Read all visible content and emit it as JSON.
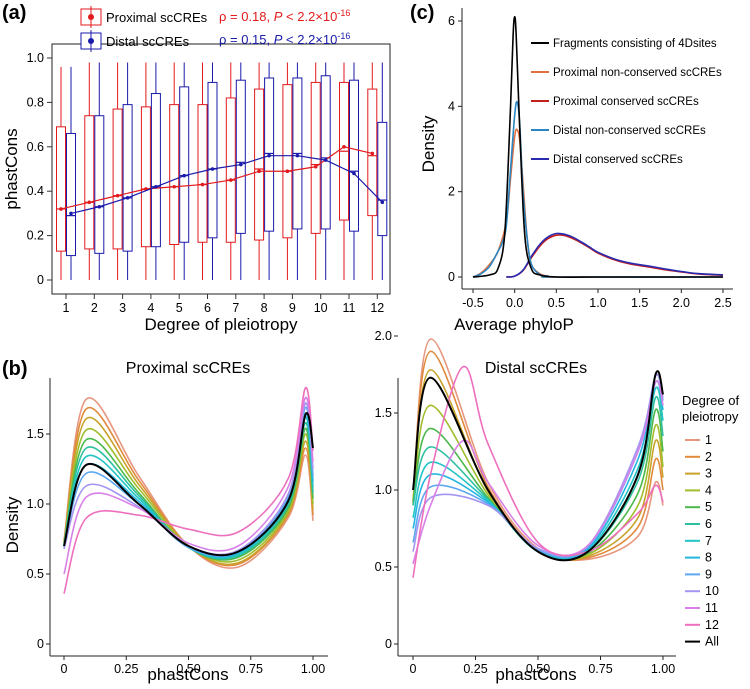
{
  "panel_labels": {
    "a": "(a)",
    "b": "(b)",
    "c": "(c)"
  },
  "panel_a": {
    "legend_proximal": "Proximal scCREs",
    "legend_distal": "Distal scCREs",
    "rho_proximal": "ρ = 0.18, ",
    "rho_distal": "ρ = 0.15, ",
    "p_symbol": "P",
    "p_prefix": " < 2.2×10",
    "p_exp": "-16"
  },
  "panel_b": {
    "title_left": "Proximal scCREs",
    "title_right": "Distal scCREs",
    "legend_title_1": "Degree of",
    "legend_title_2": "pleiotropy"
  },
  "chart_data": [
    {
      "id": "a",
      "type": "box",
      "title": "",
      "xlabel": "Degree of pleiotropy",
      "ylabel": "phastCons",
      "ylim": [
        0,
        1.0
      ],
      "yticks": [
        "0",
        "0.2",
        "0.4",
        "0.6",
        "0.8",
        "1.0"
      ],
      "categories": [
        "1",
        "2",
        "3",
        "4",
        "5",
        "6",
        "7",
        "8",
        "9",
        "10",
        "11",
        "12"
      ],
      "series": [
        {
          "name": "Proximal scCREs",
          "color": "#e31a1c",
          "mean": [
            0.32,
            0.35,
            0.38,
            0.41,
            0.42,
            0.43,
            0.45,
            0.49,
            0.49,
            0.51,
            0.6,
            0.57
          ],
          "q1": [
            0.13,
            0.14,
            0.14,
            0.15,
            0.16,
            0.17,
            0.17,
            0.18,
            0.19,
            0.21,
            0.27,
            0.29
          ],
          "median": [
            0.32,
            0.35,
            0.38,
            0.41,
            0.42,
            0.43,
            0.45,
            0.5,
            0.49,
            0.52,
            0.58,
            0.56
          ],
          "q3": [
            0.69,
            0.74,
            0.77,
            0.78,
            0.79,
            0.79,
            0.82,
            0.86,
            0.88,
            0.89,
            0.89,
            0.86
          ],
          "whisker_low": [
            0,
            0,
            0,
            0,
            0,
            0,
            0,
            0,
            0,
            0,
            0,
            0
          ],
          "whisker_high": [
            0.96,
            0.98,
            0.98,
            0.98,
            0.98,
            0.98,
            0.98,
            0.98,
            0.98,
            0.98,
            0.98,
            0.98
          ]
        },
        {
          "name": "Distal scCREs",
          "color": "#1a1aab",
          "mean": [
            0.3,
            0.33,
            0.37,
            0.42,
            0.47,
            0.5,
            0.52,
            0.56,
            0.56,
            0.54,
            0.48,
            0.35
          ],
          "q1": [
            0.11,
            0.12,
            0.13,
            0.15,
            0.17,
            0.19,
            0.21,
            0.22,
            0.23,
            0.23,
            0.22,
            0.2
          ],
          "median": [
            0.29,
            0.33,
            0.37,
            0.42,
            0.47,
            0.5,
            0.53,
            0.57,
            0.57,
            0.55,
            0.49,
            0.36
          ],
          "q3": [
            0.66,
            0.74,
            0.79,
            0.84,
            0.87,
            0.89,
            0.9,
            0.91,
            0.91,
            0.92,
            0.9,
            0.71
          ],
          "whisker_low": [
            0,
            0,
            0,
            0,
            0,
            0,
            0,
            0,
            0,
            0,
            0,
            0
          ],
          "whisker_high": [
            0.96,
            0.98,
            0.98,
            0.98,
            0.98,
            0.98,
            0.98,
            0.98,
            0.98,
            0.98,
            0.98,
            0.98
          ]
        }
      ]
    },
    {
      "id": "c",
      "type": "line",
      "xlabel": "Average phyloP",
      "ylabel": "Density",
      "xlim": [
        -0.5,
        2.5
      ],
      "ylim": [
        0,
        6.2
      ],
      "xticks": [
        "-0.5",
        "0.0",
        "0.5",
        "1.0",
        "1.5",
        "2.0",
        "2.5"
      ],
      "yticks": [
        "0",
        "2",
        "4",
        "6"
      ],
      "series": [
        {
          "name": "Fragments consisting of 4Dsites",
          "color": "#000000",
          "x": [
            -0.5,
            -0.3,
            -0.2,
            -0.12,
            -0.06,
            -0.02,
            0.0,
            0.02,
            0.06,
            0.12,
            0.2,
            0.3,
            0.5,
            1.0,
            1.5,
            2.0,
            2.5
          ],
          "y": [
            0,
            0.05,
            0.2,
            1.0,
            3.5,
            5.6,
            6.1,
            5.6,
            3.5,
            1.0,
            0.2,
            0.05,
            0,
            0,
            0,
            0,
            0
          ]
        },
        {
          "name": "Proximal non-conserved scCREs",
          "color": "#e07040",
          "x": [
            -0.5,
            -0.4,
            -0.3,
            -0.2,
            -0.1,
            -0.05,
            0.0,
            0.03,
            0.06,
            0.1,
            0.15,
            0.2,
            0.3,
            0.4,
            0.5,
            2.5
          ],
          "y": [
            0,
            0.1,
            0.3,
            0.6,
            1.3,
            2.3,
            3.3,
            3.45,
            3.2,
            2.2,
            0.9,
            0.3,
            0.08,
            0.02,
            0,
            0
          ]
        },
        {
          "name": "Proximal conserved scCREs",
          "color": "#c2201c",
          "x": [
            -0.1,
            0.0,
            0.1,
            0.2,
            0.3,
            0.4,
            0.5,
            0.6,
            0.7,
            0.8,
            0.9,
            1.0,
            1.2,
            1.4,
            1.6,
            1.8,
            2.0,
            2.2,
            2.5
          ],
          "y": [
            0,
            0.02,
            0.15,
            0.45,
            0.72,
            0.9,
            0.98,
            0.97,
            0.9,
            0.8,
            0.68,
            0.56,
            0.4,
            0.3,
            0.24,
            0.17,
            0.12,
            0.07,
            0.04
          ]
        },
        {
          "name": "Distal non-conserved scCREs",
          "color": "#2a86c2",
          "x": [
            -0.5,
            -0.4,
            -0.3,
            -0.2,
            -0.15,
            -0.1,
            -0.05,
            0.0,
            0.03,
            0.06,
            0.1,
            0.15,
            0.2,
            0.3,
            0.4,
            0.5,
            2.5
          ],
          "y": [
            0,
            0.08,
            0.25,
            0.6,
            0.8,
            1.2,
            2.5,
            3.8,
            4.1,
            3.6,
            2.0,
            0.9,
            0.3,
            0.06,
            0.02,
            0,
            0
          ]
        },
        {
          "name": "Distal conserved scCREs",
          "color": "#2a2ab0",
          "x": [
            -0.1,
            0.0,
            0.1,
            0.2,
            0.3,
            0.4,
            0.5,
            0.6,
            0.7,
            0.8,
            0.9,
            1.0,
            1.2,
            1.4,
            1.6,
            1.8,
            2.0,
            2.2,
            2.5
          ],
          "y": [
            0,
            0.02,
            0.16,
            0.48,
            0.76,
            0.94,
            1.02,
            1.0,
            0.93,
            0.82,
            0.7,
            0.58,
            0.42,
            0.32,
            0.26,
            0.19,
            0.13,
            0.08,
            0.05
          ]
        }
      ]
    },
    {
      "id": "b-left",
      "type": "line",
      "title": "Proximal scCREs",
      "xlabel": "phastCons",
      "ylabel": "Density",
      "xlim": [
        0,
        1.0
      ],
      "ylim": [
        0,
        1.9
      ],
      "xticks": [
        "0",
        "0.25",
        "0.50",
        "0.75",
        "1.00"
      ],
      "yticks": [
        "0",
        "0.5",
        "1.0",
        "1.5"
      ],
      "series": [
        {
          "name": "1",
          "color": "#e8967e",
          "x": [
            0,
            0.09,
            0.3,
            0.5,
            0.7,
            0.9,
            0.97,
            1.0
          ],
          "y": [
            0.74,
            1.75,
            1.2,
            0.7,
            0.55,
            0.9,
            1.35,
            0.88
          ]
        },
        {
          "name": "2",
          "color": "#e08a3c",
          "x": [
            0,
            0.09,
            0.3,
            0.5,
            0.7,
            0.9,
            0.97,
            1.0
          ],
          "y": [
            0.73,
            1.68,
            1.17,
            0.7,
            0.57,
            0.92,
            1.4,
            0.92
          ]
        },
        {
          "name": "3",
          "color": "#c9a22a",
          "x": [
            0,
            0.09,
            0.3,
            0.5,
            0.7,
            0.9,
            0.97,
            1.0
          ],
          "y": [
            0.72,
            1.61,
            1.14,
            0.7,
            0.58,
            0.93,
            1.45,
            0.96
          ]
        },
        {
          "name": "4",
          "color": "#9fbd2c",
          "x": [
            0,
            0.09,
            0.3,
            0.5,
            0.7,
            0.9,
            0.97,
            1.0
          ],
          "y": [
            0.72,
            1.53,
            1.11,
            0.7,
            0.6,
            0.95,
            1.5,
            1.0
          ]
        },
        {
          "name": "5",
          "color": "#4cb84a",
          "x": [
            0,
            0.09,
            0.3,
            0.5,
            0.7,
            0.9,
            0.97,
            1.0
          ],
          "y": [
            0.71,
            1.46,
            1.08,
            0.69,
            0.62,
            0.97,
            1.54,
            1.04
          ]
        },
        {
          "name": "6",
          "color": "#2cc0a0",
          "x": [
            0,
            0.09,
            0.3,
            0.5,
            0.7,
            0.9,
            0.97,
            1.0
          ],
          "y": [
            0.71,
            1.4,
            1.06,
            0.69,
            0.63,
            0.99,
            1.58,
            1.08
          ]
        },
        {
          "name": "7",
          "color": "#22c4c4",
          "x": [
            0,
            0.09,
            0.3,
            0.5,
            0.7,
            0.9,
            0.97,
            1.0
          ],
          "y": [
            0.7,
            1.34,
            1.04,
            0.69,
            0.64,
            1.01,
            1.62,
            1.12
          ]
        },
        {
          "name": "8",
          "color": "#24b6e0",
          "x": [
            0,
            0.09,
            0.3,
            0.5,
            0.7,
            0.9,
            0.97,
            1.0
          ],
          "y": [
            0.7,
            1.28,
            1.02,
            0.69,
            0.65,
            1.03,
            1.65,
            1.16
          ]
        },
        {
          "name": "9",
          "color": "#5ca8f0",
          "x": [
            0,
            0.09,
            0.3,
            0.5,
            0.7,
            0.9,
            0.97,
            1.0
          ],
          "y": [
            0.69,
            1.22,
            1.0,
            0.69,
            0.66,
            1.05,
            1.69,
            1.2
          ]
        },
        {
          "name": "10",
          "color": "#a495f0",
          "x": [
            0,
            0.09,
            0.3,
            0.5,
            0.7,
            0.9,
            0.97,
            1.0
          ],
          "y": [
            0.68,
            1.13,
            0.98,
            0.7,
            0.67,
            1.07,
            1.72,
            1.25
          ]
        },
        {
          "name": "11",
          "color": "#d880e8",
          "x": [
            0,
            0.09,
            0.3,
            0.5,
            0.7,
            0.9,
            0.97,
            1.0
          ],
          "y": [
            0.5,
            1.05,
            0.97,
            0.72,
            0.7,
            1.12,
            1.76,
            1.3
          ]
        },
        {
          "name": "12",
          "color": "#ee6fbe",
          "x": [
            0,
            0.09,
            0.3,
            0.5,
            0.7,
            0.9,
            0.97,
            1.0
          ],
          "y": [
            0.36,
            0.9,
            0.92,
            0.82,
            0.8,
            1.18,
            1.83,
            1.38
          ]
        },
        {
          "name": "All",
          "color": "#000000",
          "x": [
            0,
            0.09,
            0.3,
            0.5,
            0.7,
            0.9,
            0.97,
            1.0
          ],
          "y": [
            0.7,
            1.28,
            1.0,
            0.7,
            0.66,
            1.02,
            1.64,
            1.4
          ]
        }
      ]
    },
    {
      "id": "b-right",
      "type": "line",
      "title": "Distal scCREs",
      "xlabel": "phastCons",
      "ylabel": "",
      "xlim": [
        0,
        1.0
      ],
      "ylim": [
        0,
        2.1
      ],
      "xticks": [
        "0",
        "0.25",
        "0.50",
        "0.75",
        "1.00"
      ],
      "yticks": [
        "0",
        "0.5",
        "1.0",
        "1.5",
        "2.0"
      ],
      "series": [
        {
          "name": "1",
          "color": "#e8967e",
          "x": [
            0,
            0.07,
            0.3,
            0.5,
            0.7,
            0.9,
            0.97,
            1.0
          ],
          "y": [
            0.9,
            1.98,
            1.05,
            0.62,
            0.55,
            0.7,
            1.05,
            0.9
          ]
        },
        {
          "name": "2",
          "color": "#e08a3c",
          "x": [
            0,
            0.07,
            0.3,
            0.5,
            0.7,
            0.9,
            0.97,
            1.0
          ],
          "y": [
            0.92,
            1.9,
            1.02,
            0.61,
            0.56,
            0.76,
            1.2,
            1.0
          ]
        },
        {
          "name": "3",
          "color": "#c9a22a",
          "x": [
            0,
            0.07,
            0.3,
            0.5,
            0.7,
            0.9,
            0.97,
            1.0
          ],
          "y": [
            0.93,
            1.78,
            0.99,
            0.6,
            0.57,
            0.82,
            1.32,
            1.08
          ]
        },
        {
          "name": "4",
          "color": "#9fbd2c",
          "x": [
            0,
            0.07,
            0.3,
            0.5,
            0.7,
            0.9,
            0.97,
            1.0
          ],
          "y": [
            0.94,
            1.55,
            0.97,
            0.6,
            0.58,
            0.9,
            1.42,
            1.15
          ]
        },
        {
          "name": "5",
          "color": "#4cb84a",
          "x": [
            0,
            0.07,
            0.3,
            0.5,
            0.7,
            0.9,
            0.97,
            1.0
          ],
          "y": [
            0.92,
            1.4,
            0.95,
            0.6,
            0.59,
            0.98,
            1.52,
            1.25
          ]
        },
        {
          "name": "6",
          "color": "#2cc0a0",
          "x": [
            0,
            0.07,
            0.3,
            0.5,
            0.7,
            0.9,
            0.97,
            1.0
          ],
          "y": [
            0.9,
            1.28,
            0.94,
            0.6,
            0.6,
            1.06,
            1.6,
            1.35
          ]
        },
        {
          "name": "7",
          "color": "#22c4c4",
          "x": [
            0,
            0.07,
            0.3,
            0.5,
            0.7,
            0.9,
            0.97,
            1.0
          ],
          "y": [
            0.82,
            1.18,
            0.93,
            0.6,
            0.61,
            1.14,
            1.66,
            1.45
          ]
        },
        {
          "name": "8",
          "color": "#24b6e0",
          "x": [
            0,
            0.07,
            0.3,
            0.5,
            0.7,
            0.9,
            0.97,
            1.0
          ],
          "y": [
            0.75,
            1.1,
            0.92,
            0.61,
            0.62,
            1.2,
            1.7,
            1.52
          ]
        },
        {
          "name": "9",
          "color": "#5ca8f0",
          "x": [
            0,
            0.07,
            0.3,
            0.5,
            0.7,
            0.9,
            0.97,
            1.0
          ],
          "y": [
            0.66,
            1.02,
            0.91,
            0.61,
            0.63,
            1.25,
            1.74,
            1.58
          ]
        },
        {
          "name": "10",
          "color": "#a495f0",
          "x": [
            0,
            0.07,
            0.3,
            0.5,
            0.7,
            0.9,
            0.97,
            1.0
          ],
          "y": [
            0.6,
            0.95,
            0.9,
            0.62,
            0.64,
            1.28,
            1.74,
            1.6
          ]
        },
        {
          "name": "11",
          "color": "#d880e8",
          "x": [
            0,
            0.07,
            0.2,
            0.3,
            0.5,
            0.7,
            0.9,
            0.97,
            1.0
          ],
          "y": [
            0.52,
            0.9,
            1.32,
            1.05,
            0.64,
            0.64,
            1.25,
            1.7,
            1.55
          ]
        },
        {
          "name": "12",
          "color": "#ee6fbe",
          "x": [
            0,
            0.07,
            0.2,
            0.3,
            0.5,
            0.7,
            0.9,
            0.97,
            1.0
          ],
          "y": [
            0.43,
            1.1,
            1.8,
            1.3,
            0.66,
            0.6,
            0.85,
            1.03,
            0.92
          ]
        },
        {
          "name": "All",
          "color": "#000000",
          "x": [
            0,
            0.07,
            0.3,
            0.5,
            0.7,
            0.9,
            0.97,
            1.0
          ],
          "y": [
            1.0,
            1.73,
            1.0,
            0.6,
            0.6,
            1.1,
            1.75,
            1.62
          ]
        }
      ]
    }
  ]
}
